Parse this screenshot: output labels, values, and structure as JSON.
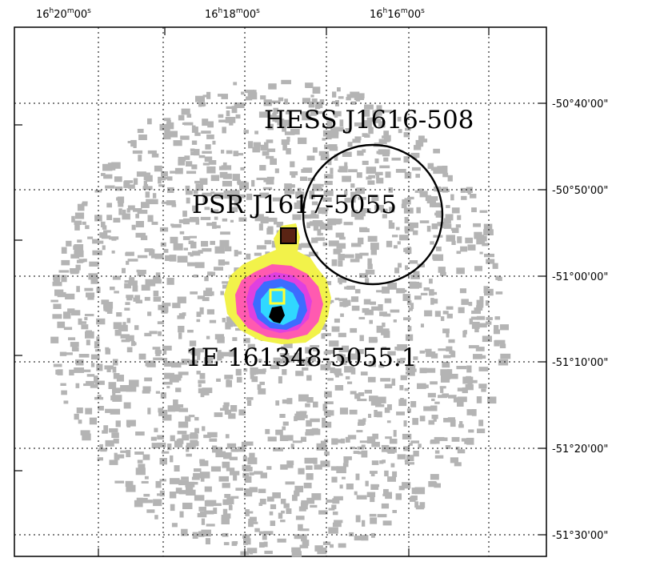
{
  "ra_axis": {
    "labels": [
      {
        "h": "16",
        "m": "20",
        "s": "00"
      },
      {
        "h": "16",
        "m": "18",
        "s": "00"
      },
      {
        "h": "16",
        "m": "16",
        "s": "00"
      }
    ]
  },
  "dec_axis": {
    "labels": [
      "-50°40'00\"",
      "-50°50'00\"",
      "-51°00'00\"",
      "-51°10'00\"",
      "-51°20'00\"",
      "-51°30'00\""
    ]
  },
  "sources": {
    "hess": "HESS J1616-508",
    "pulsar": "PSR J1617-5055",
    "xray": "1E 161348-5055.1"
  },
  "colors": {
    "background_noise": "#b4b4b4",
    "contour_yellow": "#f2f24a",
    "contour_pink": "#ff5ab0",
    "contour_magenta": "#e040e0",
    "contour_blue": "#3c6cff",
    "contour_cyan": "#30d8ff",
    "pulsar_box": "#5a2414",
    "xray_box": "#ffff30"
  }
}
